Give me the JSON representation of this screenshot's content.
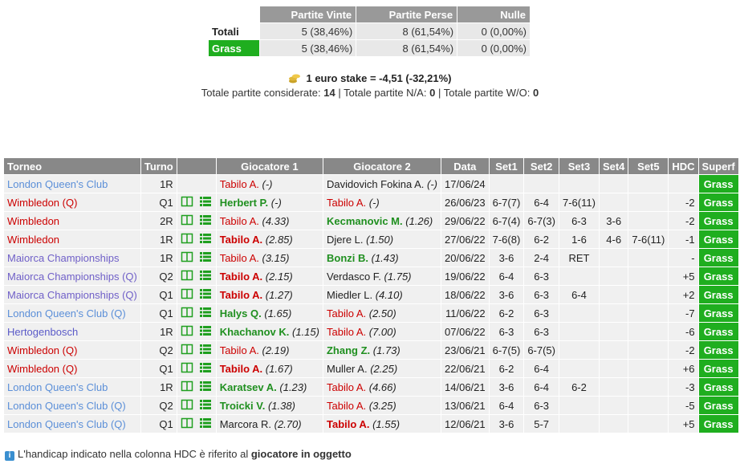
{
  "summary": {
    "headers": [
      "Partite Vinte",
      "Partite Perse",
      "Nulle"
    ],
    "rows": [
      {
        "label": "Totali",
        "cells": [
          "5 (38,46%)",
          "8 (61,54%)",
          "0 (0,00%)"
        ]
      },
      {
        "label": "Grass",
        "cells": [
          "5 (38,46%)",
          "8 (61,54%)",
          "0 (0,00%)"
        ]
      }
    ]
  },
  "stake": "1 euro stake = -4,51 (-32,21%)",
  "totals": {
    "considered_label": "Totale partite considerate:",
    "considered": "14",
    "separator": "|",
    "na_label": "Totale partite N/A:",
    "na": "0",
    "wo_label": "Totale partite W/O:",
    "wo": "0"
  },
  "matches": {
    "headers": [
      "Torneo",
      "Turno",
      "Giocatore 1",
      "Giocatore 2",
      "Data",
      "Set1",
      "Set2",
      "Set3",
      "Set4",
      "Set5",
      "HDC",
      "Superf"
    ],
    "rows": [
      {
        "tournament": "London Queen's Club",
        "round": "1R",
        "player1": {
          "name": "Tabilo A.",
          "odds": "(-)"
        },
        "player2": {
          "name": "Davidovich Fokina A.",
          "odds": "(-)"
        },
        "date": "17/06/24",
        "sets": [],
        "surface": "Grass"
      },
      {
        "tournament": "Wimbledon (Q)",
        "round": "Q1",
        "player1": {
          "name": "Herbert P.",
          "odds": "(-)"
        },
        "player2": {
          "name": "Tabilo A.",
          "odds": "(-)"
        },
        "date": "26/06/23",
        "sets": [
          "6-7(7)",
          "6-4",
          "7-6(11)"
        ],
        "hdc": "-2",
        "surface": "Grass"
      },
      {
        "tournament": "Wimbledon",
        "round": "2R",
        "player1": {
          "name": "Tabilo A.",
          "odds": "(4.33)"
        },
        "player2": {
          "name": "Kecmanovic M.",
          "odds": "(1.26)"
        },
        "date": "29/06/22",
        "sets": [
          "6-7(4)",
          "6-7(3)",
          "6-3",
          "3-6"
        ],
        "hdc": "-2",
        "surface": "Grass"
      },
      {
        "tournament": "Wimbledon",
        "round": "1R",
        "player1": {
          "name": "Tabilo A.",
          "odds": "(2.85)"
        },
        "player2": {
          "name": "Djere L.",
          "odds": "(1.50)"
        },
        "date": "27/06/22",
        "sets": [
          "7-6(8)",
          "6-2",
          "1-6",
          "4-6",
          "7-6(11)"
        ],
        "hdc": "-1",
        "surface": "Grass"
      },
      {
        "tournament": "Maiorca Championships",
        "round": "1R",
        "player1": {
          "name": "Tabilo A.",
          "odds": "(3.15)"
        },
        "player2": {
          "name": "Bonzi B.",
          "odds": "(1.43)"
        },
        "date": "20/06/22",
        "sets": [
          "3-6",
          "2-4",
          "RET"
        ],
        "hdc": "-",
        "surface": "Grass"
      },
      {
        "tournament": "Maiorca Championships (Q)",
        "round": "Q2",
        "player1": {
          "name": "Tabilo A.",
          "odds": "(2.15)"
        },
        "player2": {
          "name": "Verdasco F.",
          "odds": "(1.75)"
        },
        "date": "19/06/22",
        "sets": [
          "6-4",
          "6-3"
        ],
        "hdc": "+5",
        "surface": "Grass"
      },
      {
        "tournament": "Maiorca Championships (Q)",
        "round": "Q1",
        "player1": {
          "name": "Tabilo A.",
          "odds": "(1.27)"
        },
        "player2": {
          "name": "Miedler L.",
          "odds": "(4.10)"
        },
        "date": "18/06/22",
        "sets": [
          "3-6",
          "6-3",
          "6-4"
        ],
        "hdc": "+2",
        "surface": "Grass"
      },
      {
        "tournament": "London Queen's Club (Q)",
        "round": "Q1",
        "player1": {
          "name": "Halys Q.",
          "odds": "(1.65)"
        },
        "player2": {
          "name": "Tabilo A.",
          "odds": "(2.50)"
        },
        "date": "11/06/22",
        "sets": [
          "6-2",
          "6-3"
        ],
        "hdc": "-7",
        "surface": "Grass"
      },
      {
        "tournament": "Hertogenbosch",
        "round": "1R",
        "player1": {
          "name": "Khachanov K.",
          "odds": "(1.15)"
        },
        "player2": {
          "name": "Tabilo A.",
          "odds": "(7.00)"
        },
        "date": "07/06/22",
        "sets": [
          "6-3",
          "6-3"
        ],
        "hdc": "-6",
        "surface": "Grass"
      },
      {
        "tournament": "Wimbledon (Q)",
        "round": "Q2",
        "player1": {
          "name": "Tabilo A.",
          "odds": "(2.19)"
        },
        "player2": {
          "name": "Zhang Z.",
          "odds": "(1.73)"
        },
        "date": "23/06/21",
        "sets": [
          "6-7(5)",
          "6-7(5)"
        ],
        "hdc": "-2",
        "surface": "Grass"
      },
      {
        "tournament": "Wimbledon (Q)",
        "round": "Q1",
        "player1": {
          "name": "Tabilo A.",
          "odds": "(1.67)"
        },
        "player2": {
          "name": "Muller A.",
          "odds": "(2.25)"
        },
        "date": "22/06/21",
        "sets": [
          "6-2",
          "6-4"
        ],
        "hdc": "+6",
        "surface": "Grass"
      },
      {
        "tournament": "London Queen's Club",
        "round": "1R",
        "player1": {
          "name": "Karatsev A.",
          "odds": "(1.23)"
        },
        "player2": {
          "name": "Tabilo A.",
          "odds": "(4.66)"
        },
        "date": "14/06/21",
        "sets": [
          "3-6",
          "6-4",
          "6-2"
        ],
        "hdc": "-3",
        "surface": "Grass"
      },
      {
        "tournament": "London Queen's Club (Q)",
        "round": "Q2",
        "player1": {
          "name": "Troicki V.",
          "odds": "(1.38)"
        },
        "player2": {
          "name": "Tabilo A.",
          "odds": "(3.25)"
        },
        "date": "13/06/21",
        "sets": [
          "6-4",
          "6-3"
        ],
        "hdc": "-5",
        "surface": "Grass"
      },
      {
        "tournament": "London Queen's Club (Q)",
        "round": "Q1",
        "player1": {
          "name": "Marcora R.",
          "odds": "(2.70)"
        },
        "player2": {
          "name": "Tabilo A.",
          "odds": "(1.55)"
        },
        "date": "12/06/21",
        "sets": [
          "3-6",
          "5-7"
        ],
        "hdc": "+5",
        "surface": "Grass"
      }
    ]
  },
  "note": {
    "text": "L'handicap indicato nella colonna HDC è riferito al",
    "bold": "giocatore in oggetto"
  }
}
